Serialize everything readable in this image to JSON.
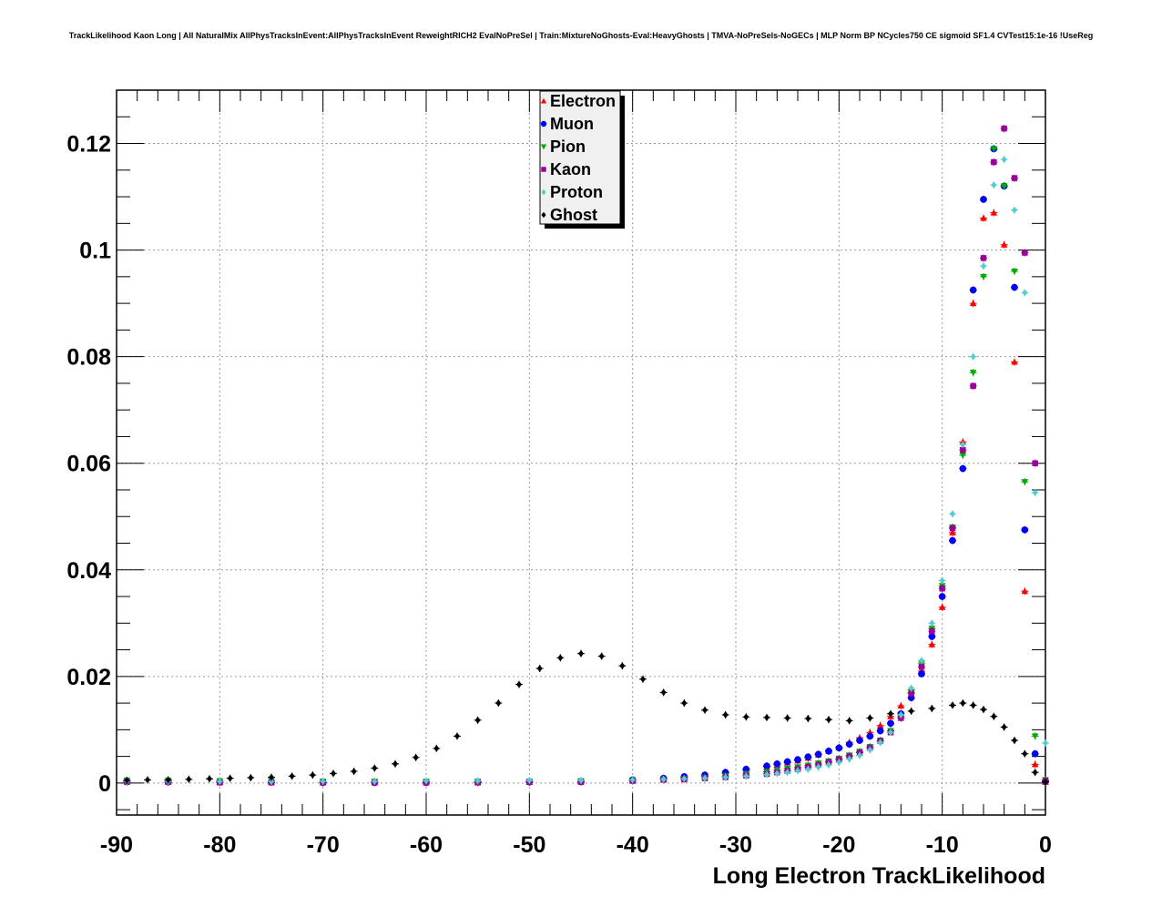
{
  "chart_data": {
    "type": "scatter",
    "title": "TrackLikelihood Kaon Long | All NaturalMix AllPhysTracksInEvent:AllPhysTracksInEvent ReweightRICH2 EvalNoPreSel | Train:MixtureNoGhosts-Eval:HeavyGhosts | TMVA-NoPreSels-NoGECs | MLP Norm BP NCycles750 CE sigmoid SF1.4 CVTest15:1e-16 !UseReg",
    "xlabel": "Long Electron TrackLikelihood",
    "ylabel": "",
    "xlim": [
      -90,
      0
    ],
    "ylim": [
      -0.006,
      0.13
    ],
    "xticks": [
      "-90",
      "-80",
      "-70",
      "-60",
      "-50",
      "-40",
      "-30",
      "-20",
      "-10",
      "0"
    ],
    "yticks": [
      "0",
      "0.02",
      "0.04",
      "0.06",
      "0.08",
      "0.1",
      "0.12"
    ],
    "grid": true,
    "legend_position": "top-center",
    "series": [
      {
        "name": "Electron",
        "color": "#ff0000",
        "marker": "triangle-up",
        "x": [
          -89,
          -85,
          -80,
          -75,
          -70,
          -65,
          -60,
          -55,
          -50,
          -45,
          -40,
          -37,
          -35,
          -33,
          -31,
          -29,
          -27,
          -26,
          -25,
          -24,
          -23,
          -22,
          -21,
          -20,
          -19,
          -18,
          -17,
          -16,
          -15,
          -14,
          -13,
          -12,
          -11,
          -10,
          -9,
          -8,
          -7,
          -6,
          -5,
          -4,
          -3,
          -2,
          -1,
          0
        ],
        "y": [
          0.0004,
          0.0003,
          0.0002,
          0.0002,
          0.0001,
          0.0001,
          0.0001,
          0.0001,
          0.0002,
          0.0003,
          0.0005,
          0.0008,
          0.001,
          0.0013,
          0.0018,
          0.0024,
          0.003,
          0.0034,
          0.0038,
          0.0042,
          0.0047,
          0.0053,
          0.006,
          0.0067,
          0.0076,
          0.0085,
          0.0095,
          0.0108,
          0.0125,
          0.0145,
          0.0175,
          0.021,
          0.026,
          0.033,
          0.047,
          0.064,
          0.09,
          0.106,
          0.107,
          0.101,
          0.079,
          0.036,
          0.0035,
          0.0002
        ]
      },
      {
        "name": "Muon",
        "color": "#0000ff",
        "marker": "circle",
        "x": [
          -89,
          -85,
          -80,
          -75,
          -70,
          -65,
          -60,
          -55,
          -50,
          -45,
          -40,
          -37,
          -35,
          -33,
          -31,
          -29,
          -27,
          -26,
          -25,
          -24,
          -23,
          -22,
          -21,
          -20,
          -19,
          -18,
          -17,
          -16,
          -15,
          -14,
          -13,
          -12,
          -11,
          -10,
          -9,
          -8,
          -7,
          -6,
          -5,
          -4,
          -3,
          -2,
          -1,
          0
        ],
        "y": [
          0.0003,
          0.0002,
          0.0002,
          0.0002,
          0.0001,
          0.0001,
          0.0001,
          0.0002,
          0.0002,
          0.0003,
          0.0006,
          0.0009,
          0.0012,
          0.0015,
          0.002,
          0.0026,
          0.0032,
          0.0036,
          0.004,
          0.0044,
          0.0049,
          0.0054,
          0.006,
          0.0066,
          0.0073,
          0.008,
          0.0088,
          0.0098,
          0.0112,
          0.013,
          0.016,
          0.0205,
          0.0275,
          0.035,
          0.0455,
          0.059,
          0.0925,
          0.1095,
          0.119,
          0.112,
          0.093,
          0.0475,
          0.0055,
          0.0003
        ]
      },
      {
        "name": "Pion",
        "color": "#00aa00",
        "marker": "triangle-down",
        "x": [
          -89,
          -85,
          -80,
          -75,
          -70,
          -65,
          -60,
          -55,
          -50,
          -45,
          -40,
          -37,
          -35,
          -33,
          -31,
          -29,
          -27,
          -26,
          -25,
          -24,
          -23,
          -22,
          -21,
          -20,
          -19,
          -18,
          -17,
          -16,
          -15,
          -14,
          -13,
          -12,
          -11,
          -10,
          -9,
          -8,
          -7,
          -6,
          -5,
          -4,
          -3,
          -2,
          -1,
          0
        ],
        "y": [
          0.0005,
          0.0005,
          0.0004,
          0.0004,
          0.0003,
          0.0003,
          0.0003,
          0.0003,
          0.0003,
          0.0004,
          0.0005,
          0.0007,
          0.0008,
          0.001,
          0.0013,
          0.0017,
          0.0021,
          0.0024,
          0.0027,
          0.003,
          0.0033,
          0.0037,
          0.0041,
          0.0046,
          0.0052,
          0.0059,
          0.0068,
          0.008,
          0.0098,
          0.0125,
          0.017,
          0.0225,
          0.029,
          0.037,
          0.048,
          0.0615,
          0.077,
          0.095,
          0.119,
          0.112,
          0.096,
          0.0565,
          0.0088,
          0.0006
        ]
      },
      {
        "name": "Kaon",
        "color": "#990099",
        "marker": "square",
        "x": [
          -89,
          -85,
          -80,
          -75,
          -70,
          -65,
          -60,
          -55,
          -50,
          -45,
          -40,
          -37,
          -35,
          -33,
          -31,
          -29,
          -27,
          -26,
          -25,
          -24,
          -23,
          -22,
          -21,
          -20,
          -19,
          -18,
          -17,
          -16,
          -15,
          -14,
          -13,
          -12,
          -11,
          -10,
          -9,
          -8,
          -7,
          -6,
          -5,
          -4,
          -3,
          -2,
          -1,
          0
        ],
        "y": [
          0.0002,
          0.0002,
          0.0001,
          0.0001,
          0.0001,
          0.0001,
          0.0001,
          0.0001,
          0.0002,
          0.0002,
          0.0004,
          0.0006,
          0.0007,
          0.0009,
          0.0011,
          0.0014,
          0.0017,
          0.002,
          0.0023,
          0.0026,
          0.003,
          0.0034,
          0.0039,
          0.0044,
          0.005,
          0.0057,
          0.0066,
          0.0079,
          0.0095,
          0.0122,
          0.0168,
          0.0218,
          0.0285,
          0.0365,
          0.0478,
          0.0625,
          0.0745,
          0.0985,
          0.1165,
          0.1228,
          0.1135,
          0.0995,
          0.06,
          0.0004
        ]
      },
      {
        "name": "Proton",
        "color": "#55cccc",
        "marker": "diamond",
        "x": [
          -89,
          -85,
          -80,
          -75,
          -70,
          -65,
          -60,
          -55,
          -50,
          -45,
          -40,
          -37,
          -35,
          -33,
          -31,
          -29,
          -27,
          -26,
          -25,
          -24,
          -23,
          -22,
          -21,
          -20,
          -19,
          -18,
          -17,
          -16,
          -15,
          -14,
          -13,
          -12,
          -11,
          -10,
          -9,
          -8,
          -7,
          -6,
          -5,
          -4,
          -3,
          -2,
          -1,
          0
        ],
        "y": [
          0.0003,
          0.0003,
          0.0003,
          0.0003,
          0.0003,
          0.0003,
          0.0004,
          0.0004,
          0.0005,
          0.0005,
          0.0006,
          0.0007,
          0.0008,
          0.0009,
          0.0011,
          0.0013,
          0.0016,
          0.0018,
          0.002,
          0.0023,
          0.0026,
          0.003,
          0.0034,
          0.0039,
          0.0045,
          0.0052,
          0.0062,
          0.0076,
          0.0095,
          0.0128,
          0.0178,
          0.023,
          0.03,
          0.038,
          0.0505,
          0.0635,
          0.08,
          0.097,
          0.1122,
          0.117,
          0.1075,
          0.092,
          0.0545,
          0.0075
        ]
      },
      {
        "name": "Ghost",
        "color": "#000000",
        "marker": "diamond",
        "x": [
          -89,
          -87,
          -85,
          -83,
          -81,
          -79,
          -77,
          -75,
          -73,
          -71,
          -69,
          -67,
          -65,
          -63,
          -61,
          -59,
          -57,
          -55,
          -53,
          -51,
          -49,
          -47,
          -45,
          -43,
          -41,
          -39,
          -37,
          -35,
          -33,
          -31,
          -29,
          -27,
          -25,
          -23,
          -21,
          -19,
          -17,
          -15,
          -13,
          -11,
          -9,
          -8,
          -7,
          -6,
          -5,
          -4,
          -3,
          -2,
          -1,
          0
        ],
        "y": [
          0.0005,
          0.0006,
          0.0006,
          0.0007,
          0.0008,
          0.0009,
          0.001,
          0.0011,
          0.0013,
          0.0015,
          0.0018,
          0.0022,
          0.0028,
          0.0036,
          0.0048,
          0.0065,
          0.0088,
          0.0118,
          0.015,
          0.0185,
          0.0215,
          0.0235,
          0.0243,
          0.0238,
          0.022,
          0.0195,
          0.017,
          0.015,
          0.0137,
          0.0128,
          0.0124,
          0.0123,
          0.0122,
          0.0121,
          0.0119,
          0.0117,
          0.0122,
          0.013,
          0.0135,
          0.014,
          0.0146,
          0.015,
          0.0146,
          0.0138,
          0.0125,
          0.0105,
          0.008,
          0.0055,
          0.002,
          0.0002
        ]
      }
    ]
  }
}
